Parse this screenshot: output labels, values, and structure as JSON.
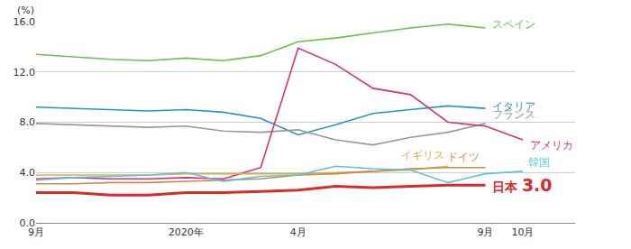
{
  "chart_data": {
    "type": "line",
    "ylabel": "(%)",
    "categories": [
      "9月",
      null,
      null,
      null,
      "2020年",
      null,
      null,
      "4月",
      null,
      null,
      null,
      null,
      "9月",
      "10月"
    ],
    "series": [
      {
        "name": "スペイン",
        "color": "#6cbf4e",
        "values": [
          13.4,
          13.2,
          13.0,
          12.9,
          13.1,
          12.9,
          13.3,
          14.4,
          14.7,
          15.1,
          15.5,
          15.8,
          15.5,
          null
        ]
      },
      {
        "name": "イタリア",
        "color": "#2a93c2",
        "values": [
          9.2,
          9.1,
          9.0,
          8.9,
          9.0,
          8.8,
          8.3,
          7.0,
          7.8,
          8.7,
          9.0,
          9.3,
          9.1,
          null
        ]
      },
      {
        "name": "フランス",
        "color": "#999999",
        "values": [
          7.9,
          7.8,
          7.7,
          7.6,
          7.7,
          7.3,
          7.2,
          7.4,
          6.6,
          6.2,
          6.8,
          7.2,
          7.9,
          null
        ]
      },
      {
        "name": "アメリカ",
        "color": "#d7307a",
        "values": [
          3.5,
          3.6,
          3.5,
          3.5,
          3.6,
          3.5,
          4.4,
          13.9,
          12.6,
          10.7,
          10.2,
          8.0,
          7.7,
          6.6
        ]
      },
      {
        "name": "イギリス",
        "color": "#d6b146",
        "values": [
          3.8,
          3.8,
          3.8,
          3.8,
          3.9,
          3.9,
          3.9,
          3.9,
          4.0,
          4.1,
          4.2,
          4.5,
          null,
          null
        ]
      },
      {
        "name": "ドイツ",
        "color": "#c98a4b",
        "values": [
          3.1,
          3.1,
          3.2,
          3.2,
          3.3,
          3.4,
          3.5,
          3.8,
          3.9,
          4.1,
          4.3,
          4.4,
          4.4,
          null
        ]
      },
      {
        "name": "韓国",
        "color": "#5cc3d8",
        "values": [
          3.4,
          3.6,
          3.7,
          3.8,
          4.0,
          3.3,
          3.7,
          3.8,
          4.5,
          4.3,
          4.2,
          3.2,
          3.9,
          4.1
        ]
      },
      {
        "name": "日本",
        "color": "#d92b2b",
        "values": [
          2.4,
          2.4,
          2.2,
          2.2,
          2.4,
          2.4,
          2.5,
          2.6,
          2.9,
          2.8,
          2.9,
          3.0,
          3.0,
          null
        ],
        "value_labels": [
          null,
          null,
          null,
          null,
          null,
          null,
          null,
          null,
          null,
          null,
          null,
          null,
          "3.0",
          null
        ]
      }
    ],
    "ylim": [
      0,
      16
    ],
    "yticks": [
      {
        "value": 0,
        "label": "0.0"
      },
      {
        "value": 4,
        "label": "4.0"
      },
      {
        "value": 8,
        "label": "8.0"
      },
      {
        "value": 12,
        "label": "12.0"
      },
      {
        "value": 16,
        "label": "16.0"
      }
    ],
    "grid": true
  }
}
